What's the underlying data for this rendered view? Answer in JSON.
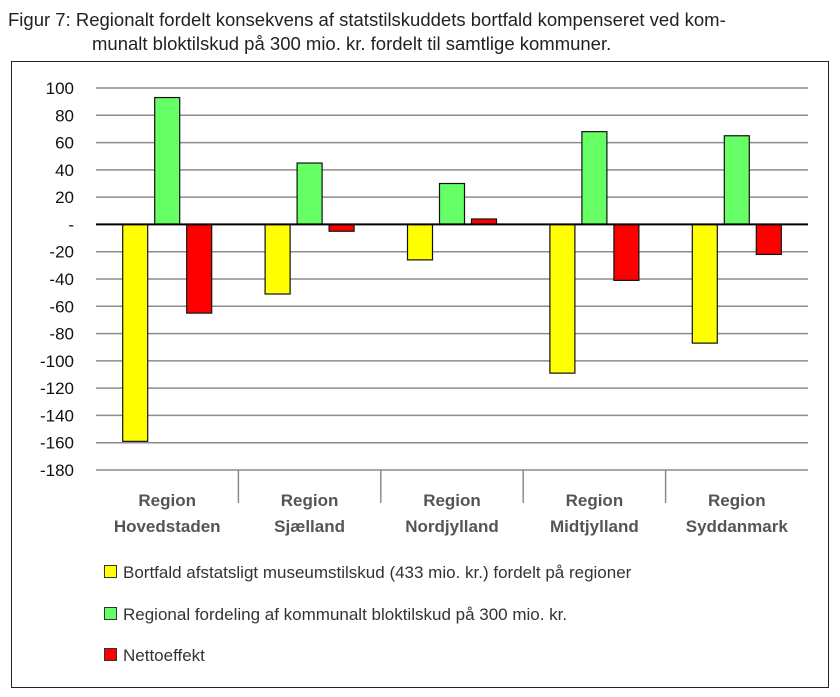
{
  "title": {
    "line1": "Figur 7: Regionalt fordelt konsekvens af statstilskuddets bortfald kompenseret ved kom-",
    "line2": "munalt bloktilskud på 300 mio. kr. fordelt til samtlige kommuner."
  },
  "chart_data": {
    "type": "bar",
    "title": "Figur 7: Regionalt fordelt konsekvens af statstilskuddets bortfald kompenseret ved kommunalt bloktilskud på 300 mio. kr. fordelt til samtlige kommuner.",
    "categories": [
      [
        "Region",
        "Hovedstaden"
      ],
      [
        "Region",
        "Sjælland"
      ],
      [
        "Region",
        "Nordjylland"
      ],
      [
        "Region",
        "Midtjylland"
      ],
      [
        "Region",
        "Syddanmark"
      ]
    ],
    "series": [
      {
        "name": "Bortfald afstatsligt museumstilskud (433 mio. kr.) fordelt på regioner",
        "color": "#ffff00",
        "values": [
          -159,
          -51,
          -26,
          -109,
          -87
        ]
      },
      {
        "name": "Regional fordeling af kommunalt bloktilskud på 300 mio. kr.",
        "color": "#66ff66",
        "values": [
          93,
          45,
          30,
          68,
          65
        ]
      },
      {
        "name": "Nettoeffekt",
        "color": "#ff0000",
        "values": [
          -65,
          -5,
          4,
          -41,
          -22
        ]
      }
    ],
    "ylim": [
      -180,
      100
    ],
    "ytick_step": 20,
    "ytick_labels": [
      "100",
      "80",
      "60",
      "40",
      "20",
      "-",
      "-20",
      "-40",
      "-60",
      "-80",
      "-100",
      "-120",
      "-140",
      "-160",
      "-180"
    ],
    "grid": true,
    "legend_position": "bottom"
  }
}
